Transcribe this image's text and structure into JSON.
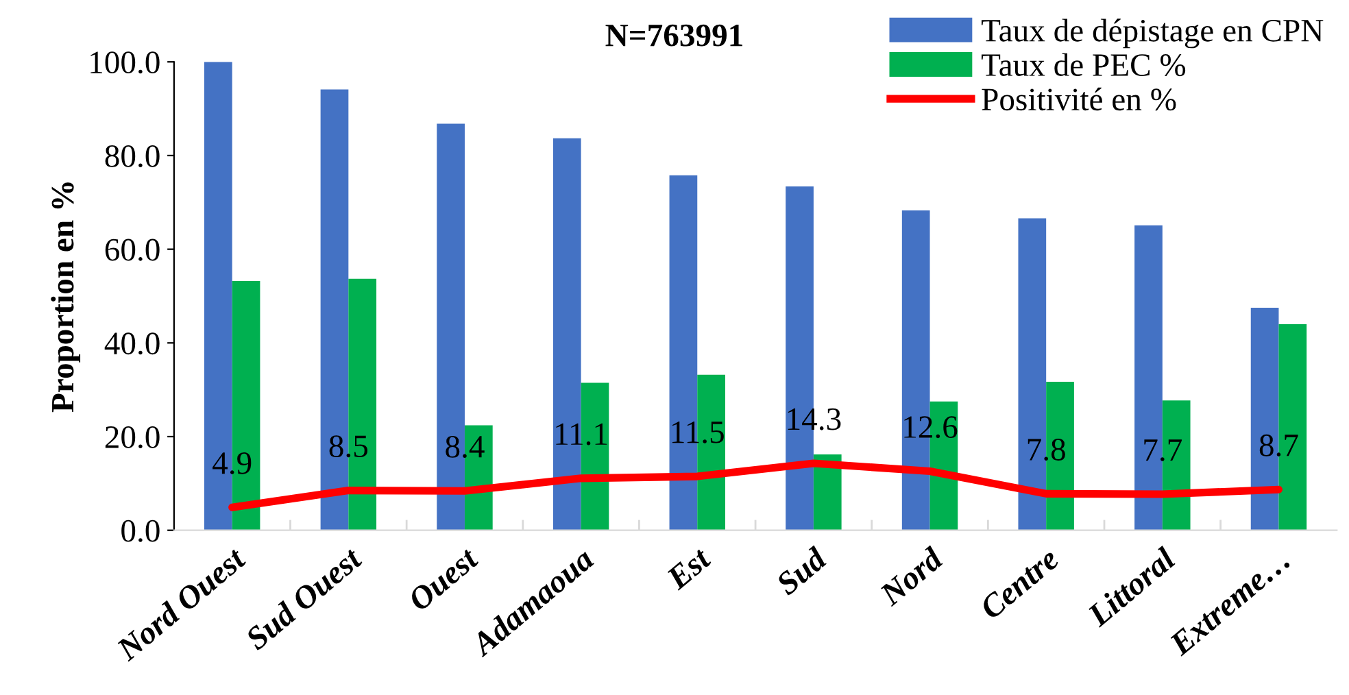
{
  "chart_data": {
    "type": "bar",
    "title": "N=763991",
    "ylabel": "Proportion en %",
    "categories": [
      "Nord Ouest",
      "Sud Ouest",
      "Ouest",
      "Adamaoua",
      "Est",
      "Sud",
      "Nord",
      "Centre",
      "Littoral",
      "Extreme…"
    ],
    "series": [
      {
        "name": "Taux de dépistage en CPN",
        "color": "#4472c4",
        "values": [
          100.0,
          94.1,
          86.8,
          83.7,
          75.8,
          73.4,
          68.3,
          66.6,
          65.1,
          47.5
        ]
      },
      {
        "name": "Taux de PEC %",
        "color": "#00b050",
        "values": [
          53.2,
          53.7,
          22.4,
          31.5,
          33.2,
          16.2,
          27.5,
          31.7,
          27.7,
          44.0
        ]
      },
      {
        "name": "Positivité en %",
        "type": "line",
        "color": "#ff0000",
        "values": [
          4.9,
          8.5,
          8.4,
          11.1,
          11.5,
          14.3,
          12.6,
          7.8,
          7.7,
          8.7
        ],
        "value_labels": [
          "4.9",
          "8.5",
          "8.4",
          "11.1",
          "11.5",
          "14.3",
          "12.6",
          "7.8",
          "7.7",
          "8.7"
        ]
      }
    ],
    "ylim": [
      0,
      100
    ],
    "yticks": [
      {
        "value": 0,
        "label": "0.0"
      },
      {
        "value": 20,
        "label": "20.0"
      },
      {
        "value": 40,
        "label": "40.0"
      },
      {
        "value": 60,
        "label": "60.0"
      },
      {
        "value": 80,
        "label": "80.0"
      },
      {
        "value": 100,
        "label": "100.0"
      }
    ],
    "grid": false,
    "legend": "top right"
  }
}
